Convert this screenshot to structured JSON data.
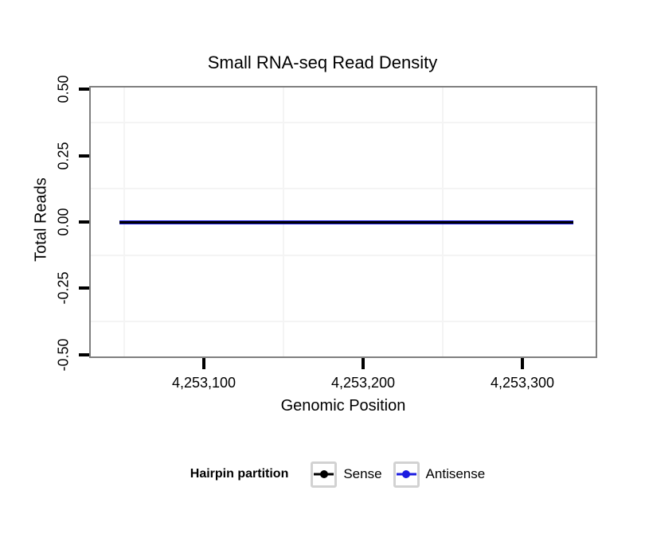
{
  "chart_data": {
    "type": "line",
    "title": "Small RNA-seq Read Density",
    "xlabel": "Genomic Position",
    "ylabel": "Total Reads",
    "x_domain": [
      4253029,
      4253346
    ],
    "y_domain": [
      -0.506,
      0.506
    ],
    "x_ticks": [
      {
        "value": 4253100,
        "label": "4,253,100"
      },
      {
        "value": 4253200,
        "label": "4,253,200"
      },
      {
        "value": 4253300,
        "label": "4,253,300"
      }
    ],
    "y_ticks": [
      {
        "value": 0.5,
        "label": "0.50"
      },
      {
        "value": 0.25,
        "label": "0.25"
      },
      {
        "value": 0.0,
        "label": "0.00"
      },
      {
        "value": -0.25,
        "label": "-0.25"
      },
      {
        "value": -0.5,
        "label": "-0.50"
      }
    ],
    "x_minor_gridlines": [
      4253050,
      4253150,
      4253250
    ],
    "y_minor_gridlines": [
      0.375,
      0.125,
      -0.125,
      -0.375
    ],
    "grid": "minor-only",
    "legend_position": "bottom",
    "series": [
      {
        "name": "Sense",
        "color": "#000000",
        "x_start": 4253047,
        "x_end": 4253332,
        "value": 0
      },
      {
        "name": "Antisense",
        "color": "#1b1be0",
        "x_start": 4253047,
        "x_end": 4253332,
        "value": 0
      }
    ]
  },
  "legend": {
    "title": "Hairpin partition",
    "items": [
      {
        "label": "Sense",
        "color": "#000000"
      },
      {
        "label": "Antisense",
        "color": "#1b1be0"
      }
    ]
  },
  "colors": {
    "panel_border": "#7f7f7f",
    "minor_grid": "#f4f4f4",
    "tick": "#000000",
    "legend_key_border": "#d2d2d2",
    "text": "#000000"
  }
}
